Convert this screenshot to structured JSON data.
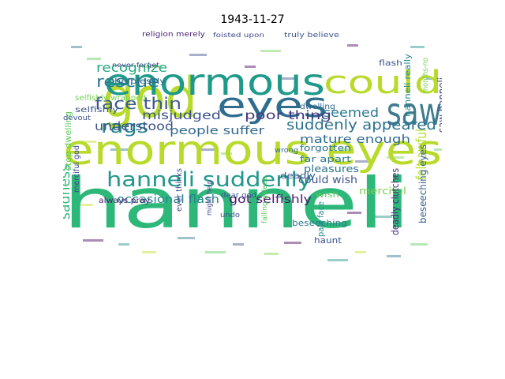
{
  "title": "1943-11-27",
  "words": [
    {
      "text": "hanneli",
      "color": "#2db87a"
    },
    {
      "text": "enormous eyes",
      "color": "#b8da2a"
    },
    {
      "text": "god",
      "color": "#b8da2a"
    },
    {
      "text": "enormous",
      "color": "#1f9a8a"
    },
    {
      "text": "could",
      "color": "#b8da2a"
    },
    {
      "text": "saw",
      "color": "#3f7b8e"
    },
    {
      "text": "eyes",
      "color": "#2e6d8e"
    },
    {
      "text": "hanneli suddenly",
      "color": "#22988d"
    },
    {
      "text": "face thin",
      "color": "#3d5a8f"
    },
    {
      "text": "rescue",
      "color": "#2a7d8e"
    },
    {
      "text": "rags",
      "color": "#26828e"
    },
    {
      "text": "recognize",
      "color": "#26a883"
    },
    {
      "text": "seemed",
      "color": "#2a7b8e"
    },
    {
      "text": "misjudged",
      "color": "#3b528b"
    },
    {
      "text": "poor thing",
      "color": "#453882"
    },
    {
      "text": "mature enough",
      "color": "#2f6c8e"
    },
    {
      "text": "suddenly appeared",
      "color": "#2c738e"
    },
    {
      "text": "understood",
      "color": "#3b518b"
    },
    {
      "text": "people suffer",
      "color": "#31688e"
    },
    {
      "text": "occasional flash",
      "color": "#27808e"
    },
    {
      "text": "got selfishly",
      "color": "#481a6c"
    },
    {
      "text": "sadness",
      "color": "#35b779"
    },
    {
      "text": "felt awful",
      "color": "#b5de2b"
    },
    {
      "text": "saw hanneli",
      "color": "#3e4a89"
    },
    {
      "text": "could wish",
      "color": "#3b528b"
    },
    {
      "text": "pleasures",
      "color": "#2c728e"
    },
    {
      "text": "merciful",
      "color": "#7ad151"
    },
    {
      "text": "deadly clutches",
      "color": "#472d7b"
    },
    {
      "text": "beseeching eyes",
      "color": "#34618d"
    },
    {
      "text": "beseeching",
      "color": "#2a788e"
    },
    {
      "text": "pale face",
      "color": "#21908d"
    },
    {
      "text": "haunt",
      "color": "#3b528b"
    },
    {
      "text": "forgotten",
      "color": "#2c728e"
    },
    {
      "text": "far apart",
      "color": "#2a788e"
    },
    {
      "text": "deadly",
      "color": "#3b528b"
    },
    {
      "text": "wish",
      "color": "#5ec962"
    },
    {
      "text": "stop dwelling",
      "color": "#5ec962"
    },
    {
      "text": "merciful god",
      "color": "#3e4a89"
    },
    {
      "text": "helplessly",
      "color": "#31688e"
    },
    {
      "text": "selfishly wrapped",
      "color": "#7ad151"
    },
    {
      "text": "selfishly",
      "color": "#3b528b"
    },
    {
      "text": "ever thinks",
      "color": "#3e4a89"
    },
    {
      "text": "might help",
      "color": "#3e4a89"
    },
    {
      "text": "always pray",
      "color": "#481f70"
    },
    {
      "text": "dear god",
      "color": "#3b528b"
    },
    {
      "text": "flash",
      "color": "#3b528b"
    },
    {
      "text": "religion merely",
      "color": "#481f70"
    },
    {
      "text": "truly believe",
      "color": "#3b528b"
    },
    {
      "text": "foisted upon",
      "color": "#3e4a89"
    },
    {
      "text": "dwelling",
      "color": "#31688e"
    },
    {
      "text": "hanneli really",
      "color": "#26828e"
    },
    {
      "text": "months-no",
      "color": "#7ad151"
    },
    {
      "text": "falling asleep",
      "color": "#5ec962"
    },
    {
      "text": "undo",
      "color": "#3b528b"
    },
    {
      "text": "wrong",
      "color": "#31688e"
    },
    {
      "text": "devout",
      "color": "#3b528b"
    },
    {
      "text": "never forget",
      "color": "#3e4a89"
    }
  ]
}
